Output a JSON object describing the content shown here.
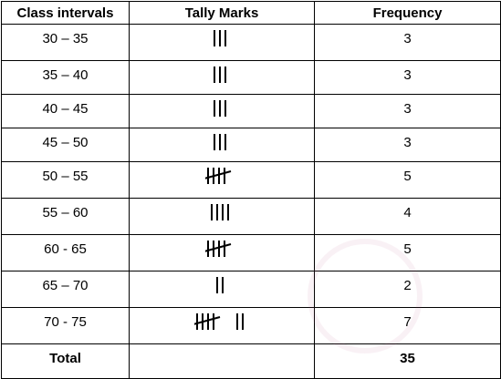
{
  "headers": {
    "class": "Class intervals",
    "tally": "Tally Marks",
    "frequency": "Frequency"
  },
  "rows": [
    {
      "interval": "30 – 35",
      "tally": 3,
      "frequency": "3"
    },
    {
      "interval": "35 – 40",
      "tally": 3,
      "frequency": "3"
    },
    {
      "interval": "40 – 45",
      "tally": 3,
      "frequency": "3"
    },
    {
      "interval": "45 – 50",
      "tally": 3,
      "frequency": "3"
    },
    {
      "interval": "50 – 55",
      "tally": 5,
      "frequency": "5"
    },
    {
      "interval": "55 – 60",
      "tally": 4,
      "frequency": "4"
    },
    {
      "interval": "60 - 65",
      "tally": 5,
      "frequency": "5"
    },
    {
      "interval": "65 – 70",
      "tally": 2,
      "frequency": "2"
    },
    {
      "interval": "70 - 75",
      "tally": 7,
      "frequency": "7"
    }
  ],
  "total": {
    "label": "Total",
    "value": "35"
  }
}
